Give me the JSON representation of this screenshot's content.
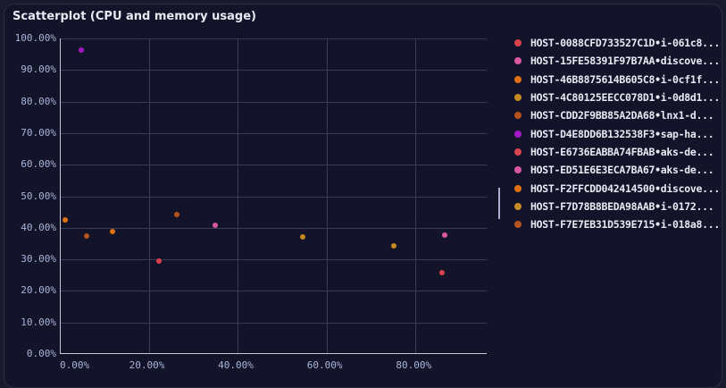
{
  "panel": {
    "title": "Scatterplot (CPU and memory usage)"
  },
  "chart_data": {
    "type": "scatter",
    "title": "Scatterplot (CPU and memory usage)",
    "xlabel": "",
    "ylabel": "",
    "xlim": [
      0,
      96
    ],
    "ylim": [
      0,
      100
    ],
    "x_ticks": [
      "0.00%",
      "20.00%",
      "40.00%",
      "60.00%",
      "80.00%"
    ],
    "y_ticks": [
      "0.00%",
      "10.00%",
      "20.00%",
      "30.00%",
      "40.00%",
      "50.00%",
      "60.00%",
      "70.00%",
      "80.00%",
      "90.00%",
      "100.00%"
    ],
    "grid": true,
    "legend_position": "right",
    "series": [
      {
        "name": "HOST-0088CFD733527C1D•i-061c8...",
        "color": "#d9434e",
        "points": [
          [
            22.2,
            29.5
          ]
        ]
      },
      {
        "name": "HOST-15FE58391F97B7AA•discove...",
        "color": "#d957a0",
        "points": [
          [
            35.0,
            40.8
          ]
        ]
      },
      {
        "name": "HOST-46B8875614B605C8•i-0cf1f...",
        "color": "#e07010",
        "points": [
          [
            1.2,
            42.6
          ]
        ]
      },
      {
        "name": "HOST-4C80125EECC078D1•i-0d8d1...",
        "color": "#c68a22",
        "points": [
          [
            54.6,
            37.1
          ]
        ]
      },
      {
        "name": "HOST-CDD2F9BB85A2DA68•lnx1-d...",
        "color": "#b5521e",
        "points": [
          [
            26.4,
            44.2
          ]
        ]
      },
      {
        "name": "HOST-D4E8DD6B132538F3•sap-ha...",
        "color": "#a418c4",
        "points": [
          [
            4.8,
            96.2
          ]
        ]
      },
      {
        "name": "HOST-E6736EABBA74FBAB•aks-de...",
        "color": "#d9434e",
        "points": [
          [
            86.0,
            25.8
          ]
        ]
      },
      {
        "name": "HOST-ED51E6E3ECA7BA67•aks-de...",
        "color": "#d957a0",
        "points": [
          [
            86.6,
            37.7
          ]
        ]
      },
      {
        "name": "HOST-F2FFCDD042414500•discove...",
        "color": "#e07010",
        "points": [
          [
            11.8,
            38.9
          ]
        ]
      },
      {
        "name": "HOST-F7D78B8BEDA98AAB•i-0172...",
        "color": "#c68a22",
        "points": [
          [
            75.2,
            34.3
          ]
        ]
      },
      {
        "name": "HOST-F7E7EB31D539E715•i-018a8...",
        "color": "#b5521e",
        "points": [
          [
            6.0,
            37.5
          ]
        ]
      }
    ]
  }
}
